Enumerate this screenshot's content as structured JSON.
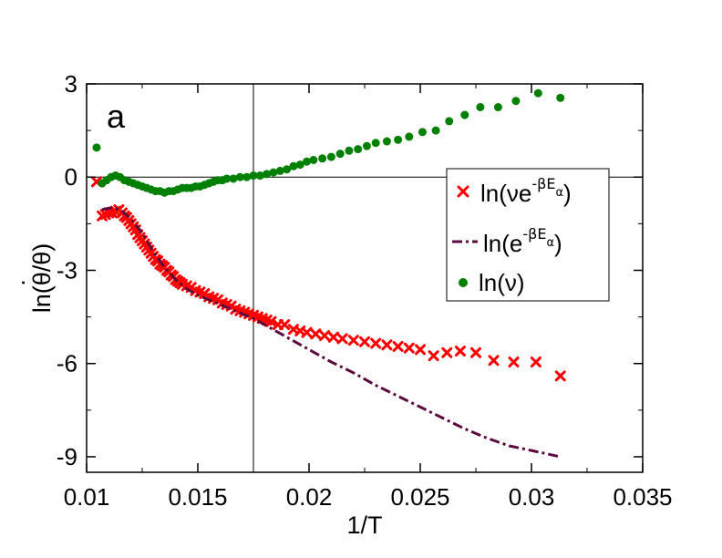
{
  "chart_data": {
    "type": "scatter",
    "panel_label": "a",
    "xlabel": "1/T",
    "ylabel": {
      "prefix": "ln(",
      "numerator": "θ",
      "overdot": "·",
      "denominator": "/θ)"
    },
    "xlim": [
      0.01,
      0.035
    ],
    "ylim": [
      -9.5,
      3
    ],
    "x_ticks": [
      0.01,
      0.015,
      0.02,
      0.025,
      0.03,
      0.035
    ],
    "x_tick_labels": [
      "0.01",
      "0.015",
      "0.02",
      "0.025",
      "0.03",
      "0.035"
    ],
    "y_ticks": [
      3,
      0,
      -3,
      -6,
      -9
    ],
    "y_tick_labels": [
      "3",
      "0",
      "-3",
      "-6",
      "-9"
    ],
    "reference_lines": {
      "horizontal_y": 0,
      "vertical_x": 0.0175
    },
    "legend": {
      "position": "right",
      "entries": [
        {
          "series": 0,
          "marker": "x",
          "main": "ln(νe",
          "sup": "-βE",
          "sub": "α",
          "close": ")"
        },
        {
          "series": 1,
          "marker": "dash-dot",
          "main": "ln(e",
          "sup": "-βE",
          "sub": "α",
          "close": ")"
        },
        {
          "series": 2,
          "marker": "circle",
          "main": "ln(ν)",
          "sup": "",
          "sub": "",
          "close": ""
        }
      ]
    },
    "series": [
      {
        "name": "ln(νe^-βEα)",
        "style": "x",
        "color": "#ff0000",
        "points": [
          [
            0.01045,
            -0.15
          ],
          [
            0.0107,
            -1.25
          ],
          [
            0.01085,
            -1.2
          ],
          [
            0.011,
            -1.15
          ],
          [
            0.01115,
            -1.15
          ],
          [
            0.0113,
            -1.1
          ],
          [
            0.01145,
            -1.05
          ],
          [
            0.0116,
            -1.15
          ],
          [
            0.0117,
            -1.25
          ],
          [
            0.0118,
            -1.3
          ],
          [
            0.0119,
            -1.4
          ],
          [
            0.012,
            -1.5
          ],
          [
            0.0121,
            -1.6
          ],
          [
            0.0122,
            -1.7
          ],
          [
            0.0123,
            -1.85
          ],
          [
            0.0124,
            -1.95
          ],
          [
            0.0125,
            -2.05
          ],
          [
            0.0126,
            -2.15
          ],
          [
            0.0127,
            -2.25
          ],
          [
            0.0128,
            -2.35
          ],
          [
            0.0129,
            -2.45
          ],
          [
            0.013,
            -2.55
          ],
          [
            0.0131,
            -2.65
          ],
          [
            0.0132,
            -2.7
          ],
          [
            0.0133,
            -2.8
          ],
          [
            0.0134,
            -2.85
          ],
          [
            0.0135,
            -2.9
          ],
          [
            0.0136,
            -3.0
          ],
          [
            0.0137,
            -3.05
          ],
          [
            0.0138,
            -3.15
          ],
          [
            0.0139,
            -3.2
          ],
          [
            0.014,
            -3.3
          ],
          [
            0.0141,
            -3.35
          ],
          [
            0.0142,
            -3.4
          ],
          [
            0.0143,
            -3.45
          ],
          [
            0.0145,
            -3.5
          ],
          [
            0.0147,
            -3.55
          ],
          [
            0.0149,
            -3.65
          ],
          [
            0.0151,
            -3.7
          ],
          [
            0.0153,
            -3.75
          ],
          [
            0.0155,
            -3.85
          ],
          [
            0.0157,
            -3.9
          ],
          [
            0.0159,
            -3.95
          ],
          [
            0.0161,
            -4.05
          ],
          [
            0.0163,
            -4.1
          ],
          [
            0.0165,
            -4.15
          ],
          [
            0.0167,
            -4.25
          ],
          [
            0.0169,
            -4.3
          ],
          [
            0.0171,
            -4.35
          ],
          [
            0.0173,
            -4.4
          ],
          [
            0.0175,
            -4.45
          ],
          [
            0.0177,
            -4.5
          ],
          [
            0.0179,
            -4.55
          ],
          [
            0.0181,
            -4.6
          ],
          [
            0.0183,
            -4.65
          ],
          [
            0.0186,
            -4.75
          ],
          [
            0.0189,
            -4.75
          ],
          [
            0.0193,
            -4.9
          ],
          [
            0.0196,
            -4.95
          ],
          [
            0.0199,
            -5.0
          ],
          [
            0.0203,
            -5.05
          ],
          [
            0.0207,
            -5.1
          ],
          [
            0.0211,
            -5.15
          ],
          [
            0.0215,
            -5.2
          ],
          [
            0.022,
            -5.25
          ],
          [
            0.0225,
            -5.3
          ],
          [
            0.023,
            -5.35
          ],
          [
            0.0235,
            -5.4
          ],
          [
            0.024,
            -5.45
          ],
          [
            0.0245,
            -5.5
          ],
          [
            0.025,
            -5.55
          ],
          [
            0.0256,
            -5.75
          ],
          [
            0.0262,
            -5.65
          ],
          [
            0.0268,
            -5.6
          ],
          [
            0.0275,
            -5.65
          ],
          [
            0.0283,
            -5.9
          ],
          [
            0.0292,
            -5.95
          ],
          [
            0.0302,
            -5.95
          ],
          [
            0.0313,
            -6.4
          ]
        ]
      },
      {
        "name": "ln(e^-βEα)",
        "style": "dash-dot",
        "color": "#5c0a3e",
        "points": [
          [
            0.0107,
            -1.05
          ],
          [
            0.011,
            -1.0
          ],
          [
            0.0113,
            -1.0
          ],
          [
            0.0116,
            -1.1
          ],
          [
            0.012,
            -1.35
          ],
          [
            0.0125,
            -1.8
          ],
          [
            0.013,
            -2.4
          ],
          [
            0.0135,
            -2.9
          ],
          [
            0.014,
            -3.3
          ],
          [
            0.0145,
            -3.6
          ],
          [
            0.015,
            -3.8
          ],
          [
            0.0155,
            -3.95
          ],
          [
            0.016,
            -4.1
          ],
          [
            0.0165,
            -4.25
          ],
          [
            0.017,
            -4.4
          ],
          [
            0.0175,
            -4.55
          ],
          [
            0.018,
            -4.75
          ],
          [
            0.0185,
            -4.95
          ],
          [
            0.019,
            -5.15
          ],
          [
            0.02,
            -5.55
          ],
          [
            0.021,
            -5.95
          ],
          [
            0.022,
            -6.3
          ],
          [
            0.023,
            -6.7
          ],
          [
            0.024,
            -7.05
          ],
          [
            0.025,
            -7.4
          ],
          [
            0.026,
            -7.75
          ],
          [
            0.027,
            -8.1
          ],
          [
            0.028,
            -8.4
          ],
          [
            0.029,
            -8.65
          ],
          [
            0.03,
            -8.8
          ],
          [
            0.0313,
            -9.0
          ]
        ]
      },
      {
        "name": "ln(ν)",
        "style": "circle",
        "color": "#008000",
        "points": [
          [
            0.01045,
            0.95
          ],
          [
            0.0107,
            -0.2
          ],
          [
            0.0109,
            -0.1
          ],
          [
            0.0111,
            0.0
          ],
          [
            0.0113,
            0.05
          ],
          [
            0.0115,
            0.0
          ],
          [
            0.0117,
            -0.1
          ],
          [
            0.0119,
            -0.15
          ],
          [
            0.0121,
            -0.2
          ],
          [
            0.0123,
            -0.25
          ],
          [
            0.0125,
            -0.3
          ],
          [
            0.0127,
            -0.35
          ],
          [
            0.0129,
            -0.4
          ],
          [
            0.0131,
            -0.45
          ],
          [
            0.0133,
            -0.45
          ],
          [
            0.0135,
            -0.5
          ],
          [
            0.0137,
            -0.45
          ],
          [
            0.0139,
            -0.45
          ],
          [
            0.0141,
            -0.4
          ],
          [
            0.0143,
            -0.35
          ],
          [
            0.0145,
            -0.35
          ],
          [
            0.0147,
            -0.35
          ],
          [
            0.0149,
            -0.3
          ],
          [
            0.0151,
            -0.3
          ],
          [
            0.0153,
            -0.25
          ],
          [
            0.0155,
            -0.2
          ],
          [
            0.0157,
            -0.15
          ],
          [
            0.0159,
            -0.1
          ],
          [
            0.0161,
            -0.1
          ],
          [
            0.0163,
            -0.05
          ],
          [
            0.0166,
            -0.05
          ],
          [
            0.0169,
            0.0
          ],
          [
            0.0172,
            0.0
          ],
          [
            0.0175,
            0.05
          ],
          [
            0.0178,
            0.05
          ],
          [
            0.0181,
            0.1
          ],
          [
            0.0184,
            0.15
          ],
          [
            0.0187,
            0.2
          ],
          [
            0.019,
            0.25
          ],
          [
            0.0193,
            0.35
          ],
          [
            0.0196,
            0.4
          ],
          [
            0.0199,
            0.5
          ],
          [
            0.0202,
            0.55
          ],
          [
            0.0206,
            0.6
          ],
          [
            0.021,
            0.65
          ],
          [
            0.0214,
            0.75
          ],
          [
            0.0218,
            0.85
          ],
          [
            0.0222,
            0.9
          ],
          [
            0.0226,
            1.0
          ],
          [
            0.023,
            1.1
          ],
          [
            0.0235,
            1.15
          ],
          [
            0.024,
            1.2
          ],
          [
            0.0245,
            1.3
          ],
          [
            0.0251,
            1.45
          ],
          [
            0.0257,
            1.5
          ],
          [
            0.0263,
            1.8
          ],
          [
            0.027,
            2.0
          ],
          [
            0.0277,
            2.25
          ],
          [
            0.0285,
            2.25
          ],
          [
            0.0293,
            2.45
          ],
          [
            0.0303,
            2.7
          ],
          [
            0.0313,
            2.55
          ]
        ]
      }
    ]
  }
}
